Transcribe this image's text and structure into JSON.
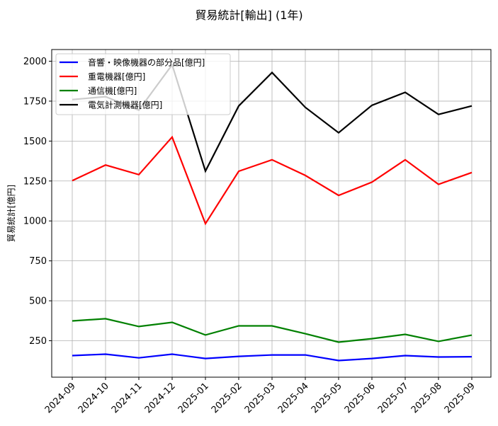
{
  "chart_data": {
    "type": "line",
    "title": "貿易統計[輸出] (1年)",
    "xlabel": "",
    "ylabel": "貿易統計[億円]",
    "categories": [
      "2024-09",
      "2024-10",
      "2024-11",
      "2024-12",
      "2025-01",
      "2025-02",
      "2025-03",
      "2025-04",
      "2025-05",
      "2025-06",
      "2025-07",
      "2025-08",
      "2025-09"
    ],
    "yticks": [
      250,
      500,
      750,
      1000,
      1250,
      1500,
      1750,
      2000
    ],
    "ylim": [
      19,
      2070
    ],
    "grid": true,
    "legend_position": "upper left",
    "series": [
      {
        "name": "音響・映像機器の部分品[億円]",
        "color": "#0000ff",
        "values": [
          157,
          166,
          143,
          166,
          139,
          152,
          161,
          161,
          126,
          139,
          157,
          148,
          150
        ]
      },
      {
        "name": "重電機器[億円]",
        "color": "#ff0000",
        "values": [
          1252,
          1350,
          1290,
          1525,
          983,
          1311,
          1383,
          1285,
          1160,
          1243,
          1383,
          1229,
          1303
        ]
      },
      {
        "name": "通信機[億円]",
        "color": "#008000",
        "values": [
          374,
          388,
          339,
          365,
          286,
          343,
          343,
          294,
          241,
          263,
          290,
          246,
          285
        ]
      },
      {
        "name": "電気計測機器[億円]",
        "color": "#000000",
        "values": [
          1760,
          1778,
          1694,
          1978,
          1312,
          1720,
          1929,
          1711,
          1552,
          1724,
          1805,
          1667,
          1720
        ]
      }
    ]
  }
}
